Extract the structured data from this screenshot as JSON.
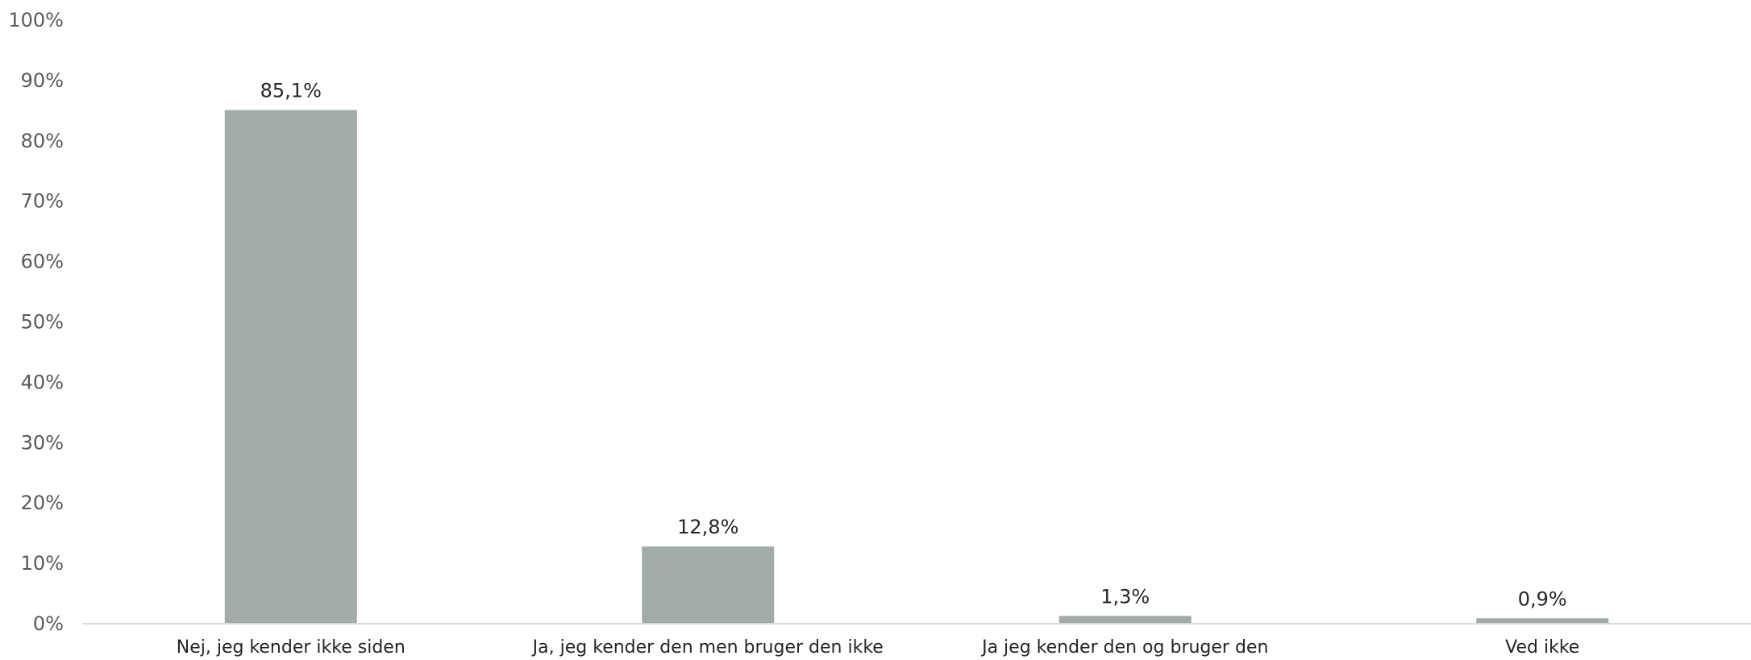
{
  "chart_data": {
    "type": "bar",
    "categories": [
      "Nej, jeg kender ikke siden",
      "Ja, jeg kender den men bruger den ikke",
      "Ja jeg kender den og bruger den",
      "Ved ikke"
    ],
    "values": [
      85.1,
      12.8,
      1.3,
      0.9
    ],
    "data_labels": [
      "85,1%",
      "12,8%",
      "1,3%",
      "0,9%"
    ],
    "ylim": [
      0,
      100
    ],
    "y_ticks": [
      "0%",
      "10%",
      "20%",
      "30%",
      "40%",
      "50%",
      "60%",
      "70%",
      "80%",
      "90%",
      "100%"
    ],
    "title": "",
    "xlabel": "",
    "ylabel": "",
    "grid": false,
    "legend": "none",
    "colors": {
      "bar": "#a1aba8",
      "axis": "#d9d9d9"
    }
  }
}
